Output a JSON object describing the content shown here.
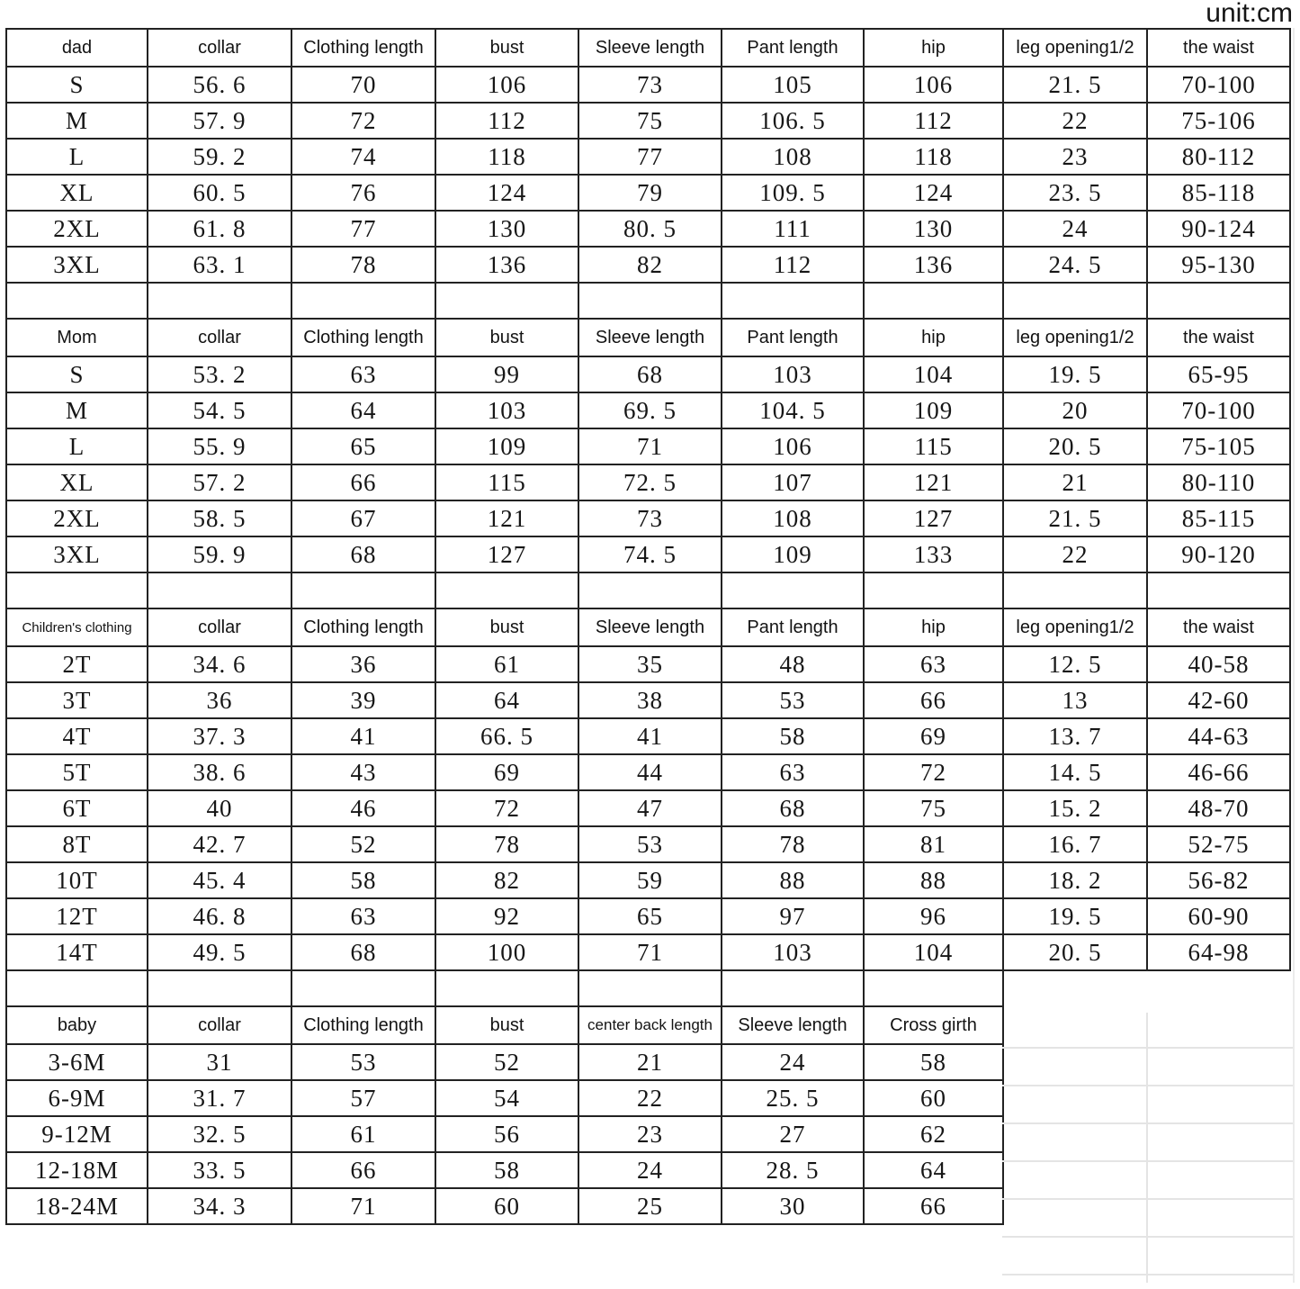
{
  "unit_label": "unit:cm",
  "colors": {
    "table_border": "#222222",
    "faint_grid": "#e4e4e4",
    "text": "#161616"
  },
  "tables": [
    {
      "id": "dad",
      "header": [
        "dad",
        "collar",
        "Clothing length",
        "bust",
        "Sleeve length",
        "Pant length",
        "hip",
        "leg opening1/2",
        "the waist"
      ],
      "rows": [
        [
          "S",
          "56. 6",
          "70",
          "106",
          "73",
          "105",
          "106",
          "21. 5",
          "70-100"
        ],
        [
          "M",
          "57. 9",
          "72",
          "112",
          "75",
          "106. 5",
          "112",
          "22",
          "75-106"
        ],
        [
          "L",
          "59. 2",
          "74",
          "118",
          "77",
          "108",
          "118",
          "23",
          "80-112"
        ],
        [
          "XL",
          "60. 5",
          "76",
          "124",
          "79",
          "109. 5",
          "124",
          "23. 5",
          "85-118"
        ],
        [
          "2XL",
          "61. 8",
          "77",
          "130",
          "80. 5",
          "111",
          "130",
          "24",
          "90-124"
        ],
        [
          "3XL",
          "63. 1",
          "78",
          "136",
          "82",
          "112",
          "136",
          "24. 5",
          "95-130"
        ]
      ],
      "spacer_after_cols": 9
    },
    {
      "id": "mom",
      "header": [
        "Mom",
        "collar",
        "Clothing length",
        "bust",
        "Sleeve length",
        "Pant length",
        "hip",
        "leg opening1/2",
        "the waist"
      ],
      "rows": [
        [
          "S",
          "53. 2",
          "63",
          "99",
          "68",
          "103",
          "104",
          "19. 5",
          "65-95"
        ],
        [
          "M",
          "54. 5",
          "64",
          "103",
          "69. 5",
          "104. 5",
          "109",
          "20",
          "70-100"
        ],
        [
          "L",
          "55. 9",
          "65",
          "109",
          "71",
          "106",
          "115",
          "20. 5",
          "75-105"
        ],
        [
          "XL",
          "57. 2",
          "66",
          "115",
          "72. 5",
          "107",
          "121",
          "21",
          "80-110"
        ],
        [
          "2XL",
          "58. 5",
          "67",
          "121",
          "73",
          "108",
          "127",
          "21. 5",
          "85-115"
        ],
        [
          "3XL",
          "59. 9",
          "68",
          "127",
          "74. 5",
          "109",
          "133",
          "22",
          "90-120"
        ]
      ],
      "spacer_after_cols": 9
    },
    {
      "id": "children",
      "header": [
        "Children's clothing",
        "collar",
        "Clothing length",
        "bust",
        "Sleeve length",
        "Pant length",
        "hip",
        "leg opening1/2",
        "the waist"
      ],
      "rows": [
        [
          "2T",
          "34. 6",
          "36",
          "61",
          "35",
          "48",
          "63",
          "12. 5",
          "40-58"
        ],
        [
          "3T",
          "36",
          "39",
          "64",
          "38",
          "53",
          "66",
          "13",
          "42-60"
        ],
        [
          "4T",
          "37. 3",
          "41",
          "66. 5",
          "41",
          "58",
          "69",
          "13. 7",
          "44-63"
        ],
        [
          "5T",
          "38. 6",
          "43",
          "69",
          "44",
          "63",
          "72",
          "14. 5",
          "46-66"
        ],
        [
          "6T",
          "40",
          "46",
          "72",
          "47",
          "68",
          "75",
          "15. 2",
          "48-70"
        ],
        [
          "8T",
          "42. 7",
          "52",
          "78",
          "53",
          "78",
          "81",
          "16. 7",
          "52-75"
        ],
        [
          "10T",
          "45. 4",
          "58",
          "82",
          "59",
          "88",
          "88",
          "18. 2",
          "56-82"
        ],
        [
          "12T",
          "46. 8",
          "63",
          "92",
          "65",
          "97",
          "96",
          "19. 5",
          "60-90"
        ],
        [
          "14T",
          "49. 5",
          "68",
          "100",
          "71",
          "103",
          "104",
          "20. 5",
          "64-98"
        ]
      ],
      "spacer_after_cols": 7
    },
    {
      "id": "baby",
      "header": [
        "baby",
        "collar",
        "Clothing length",
        "bust",
        "center back length",
        "Sleeve length",
        "Cross girth"
      ],
      "rows": [
        [
          "3-6M",
          "31",
          "53",
          "52",
          "21",
          "24",
          "58"
        ],
        [
          "6-9M",
          "31. 7",
          "57",
          "54",
          "22",
          "25. 5",
          "60"
        ],
        [
          "9-12M",
          "32. 5",
          "61",
          "56",
          "23",
          "27",
          "62"
        ],
        [
          "12-18M",
          "33. 5",
          "66",
          "58",
          "24",
          "28. 5",
          "64"
        ],
        [
          "18-24M",
          "34. 3",
          "71",
          "60",
          "25",
          "30",
          "66"
        ]
      ],
      "spacer_after_cols": 0
    }
  ]
}
